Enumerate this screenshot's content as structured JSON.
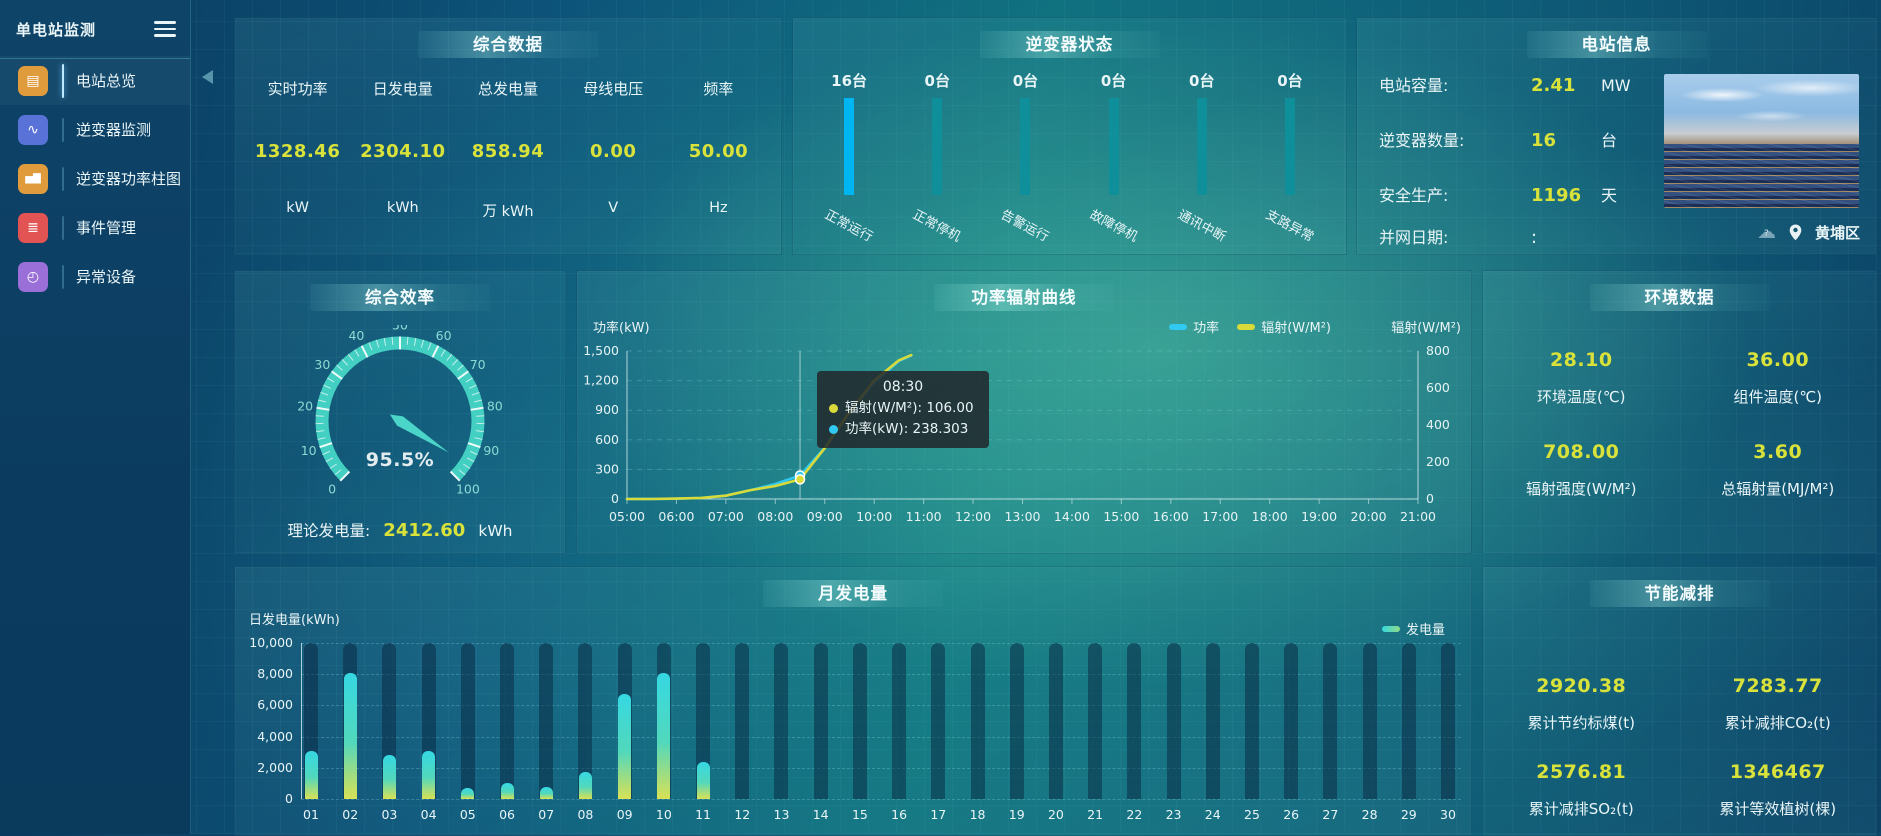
{
  "app": {
    "title": "单电站监测"
  },
  "sidebar": {
    "items": [
      {
        "label": "电站总览",
        "icon": "station-overview-icon",
        "color": "#e09c3c",
        "active": true
      },
      {
        "label": "逆变器监测",
        "icon": "inverter-monitor-icon",
        "color": "#5872d8",
        "active": false
      },
      {
        "label": "逆变器功率柱图",
        "icon": "inverter-power-bars-icon",
        "color": "#e09c3c",
        "active": false
      },
      {
        "label": "事件管理",
        "icon": "event-management-icon",
        "color": "#e25454",
        "active": false
      },
      {
        "label": "异常设备",
        "icon": "abnormal-device-icon",
        "color": "#9a6fd8",
        "active": false
      }
    ]
  },
  "summary": {
    "title": "综合数据",
    "metrics": [
      {
        "label": "实时功率",
        "value": "1328.46",
        "unit": "kW"
      },
      {
        "label": "日发电量",
        "value": "2304.10",
        "unit": "kWh"
      },
      {
        "label": "总发电量",
        "value": "858.94",
        "unit": "万 kWh"
      },
      {
        "label": "母线电压",
        "value": "0.00",
        "unit": "V"
      },
      {
        "label": "频率",
        "value": "50.00",
        "unit": "Hz"
      }
    ]
  },
  "inverter_status": {
    "title": "逆变器状态",
    "items": [
      {
        "label": "正常运行",
        "count": "16台",
        "highlight": true
      },
      {
        "label": "正常停机",
        "count": "0台",
        "highlight": false
      },
      {
        "label": "告警运行",
        "count": "0台",
        "highlight": false
      },
      {
        "label": "故障停机",
        "count": "0台",
        "highlight": false
      },
      {
        "label": "通讯中断",
        "count": "0台",
        "highlight": false
      },
      {
        "label": "支路异常",
        "count": "0台",
        "highlight": false
      }
    ]
  },
  "station_info": {
    "title": "电站信息",
    "rows": [
      {
        "label": "电站容量:",
        "value": "2.41",
        "unit": "MW"
      },
      {
        "label": "逆变器数量:",
        "value": "16",
        "unit": "台"
      },
      {
        "label": "安全生产:",
        "value": "1196",
        "unit": "天"
      },
      {
        "label": "并网日期:",
        "value": ":",
        "unit": ""
      }
    ],
    "district": "黄埔区"
  },
  "efficiency": {
    "label": "理论发电量:",
    "value": "2412.60",
    "unit": "kWh"
  },
  "environment": {
    "title": "环境数据",
    "cells": [
      {
        "value": "28.10",
        "label": "环境温度(℃)"
      },
      {
        "value": "36.00",
        "label": "组件温度(℃)"
      },
      {
        "value": "708.00",
        "label": "辐射强度(W/M²)"
      },
      {
        "value": "3.60",
        "label": "总辐射量(MJ/M²)"
      }
    ]
  },
  "saving": {
    "title": "节能减排",
    "cells": [
      {
        "value": "2920.38",
        "label": "累计节约标煤(t)"
      },
      {
        "value": "7283.77",
        "label": "累计减排CO₂(t)"
      },
      {
        "value": "2576.81",
        "label": "累计减排SO₂(t)"
      },
      {
        "value": "1346467",
        "label": "累计等效植树(棵)"
      }
    ]
  },
  "chart_data": [
    {
      "type": "line",
      "title": "功率辐射曲线",
      "legend": [
        {
          "name": "功率",
          "color": "#2fc9f2"
        },
        {
          "name": "辐射(W/M²)",
          "color": "#d8da3a"
        }
      ],
      "x_ticks": [
        "05:00",
        "06:00",
        "07:00",
        "08:00",
        "09:00",
        "10:00",
        "11:00",
        "12:00",
        "13:00",
        "14:00",
        "15:00",
        "16:00",
        "17:00",
        "18:00",
        "19:00",
        "20:00",
        "21:00"
      ],
      "left_axis": {
        "label": "功率(kW)",
        "min": 0,
        "max": 1500,
        "ticks": [
          0,
          300,
          600,
          900,
          1200,
          1500
        ]
      },
      "right_axis": {
        "label": "辐射(W/M²)",
        "min": 0,
        "max": 800,
        "ticks": [
          0,
          200,
          400,
          600,
          800
        ]
      },
      "series": [
        {
          "name": "功率",
          "axis": "left",
          "color": "#2fc9f2",
          "points": [
            [
              "05:00",
              0
            ],
            [
              "05:30",
              1
            ],
            [
              "06:00",
              3
            ],
            [
              "06:30",
              10
            ],
            [
              "07:00",
              35
            ],
            [
              "07:30",
              90
            ],
            [
              "08:00",
              152
            ],
            [
              "08:30",
              238.303
            ],
            [
              "09:00",
              520
            ],
            [
              "09:30",
              880
            ],
            [
              "10:00",
              1180
            ],
            [
              "10:30",
              1400
            ],
            [
              "10:45",
              1455
            ]
          ]
        },
        {
          "name": "辐射(W/M²)",
          "axis": "right",
          "color": "#d8da3a",
          "points": [
            [
              "05:00",
              0
            ],
            [
              "05:30",
              0
            ],
            [
              "06:00",
              2
            ],
            [
              "06:30",
              6
            ],
            [
              "07:00",
              18
            ],
            [
              "07:30",
              48
            ],
            [
              "08:00",
              70
            ],
            [
              "08:30",
              106
            ],
            [
              "09:00",
              275
            ],
            [
              "09:30",
              470
            ],
            [
              "10:00",
              640
            ],
            [
              "10:30",
              750
            ],
            [
              "10:45",
              778
            ]
          ]
        }
      ],
      "tooltip": {
        "time": "08:30",
        "rows": [
          {
            "name": "辐射(W/M²)",
            "value": "106.00",
            "color": "#d8da3a"
          },
          {
            "name": "功率(kW)",
            "value": "238.303",
            "color": "#2fc9f2"
          }
        ]
      }
    },
    {
      "type": "bar",
      "title": "月发电量",
      "ylabel": "日发电量(kWh)",
      "legend": [
        {
          "name": "发电量",
          "color": "#57d8b0"
        }
      ],
      "categories": [
        "01",
        "02",
        "03",
        "04",
        "05",
        "06",
        "07",
        "08",
        "09",
        "10",
        "11",
        "12",
        "13",
        "14",
        "15",
        "16",
        "17",
        "18",
        "19",
        "20",
        "21",
        "22",
        "23",
        "24",
        "25",
        "26",
        "27",
        "28",
        "29",
        "30"
      ],
      "values": [
        3100,
        8100,
        2800,
        3100,
        700,
        1000,
        800,
        1700,
        6700,
        8100,
        2400,
        0,
        0,
        0,
        0,
        0,
        0,
        0,
        0,
        0,
        0,
        0,
        0,
        0,
        0,
        0,
        0,
        0,
        0,
        0
      ],
      "ylim": [
        0,
        10000
      ],
      "yticks": [
        0,
        2000,
        4000,
        6000,
        8000,
        10000
      ]
    },
    {
      "type": "gauge",
      "title": "综合效率",
      "value": 95.5,
      "display": "95.5%",
      "min": 0,
      "max": 100,
      "tick_step": 10
    }
  ]
}
